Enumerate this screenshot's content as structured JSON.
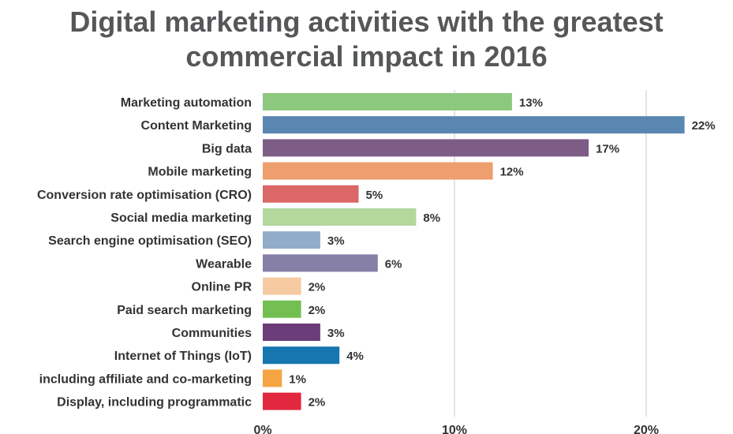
{
  "chart_data": {
    "type": "bar",
    "orientation": "horizontal",
    "title": "Digital marketing activities with the greatest commercial impact in 2016",
    "title_lines": [
      "Digital marketing activities with the greatest",
      "commercial impact in 2016"
    ],
    "categories": [
      "Marketing automation",
      "Content Marketing",
      "Big data",
      "Mobile marketing",
      "Conversion rate optimisation (CRO)",
      "Social media marketing",
      "Search engine optimisation (SEO)",
      "Wearable",
      "Online PR",
      "Paid search marketing",
      "Communities",
      "Internet of Things (IoT)",
      "including affiliate and co-marketing",
      "Display, including programmatic"
    ],
    "values": [
      13,
      22,
      17,
      12,
      5,
      8,
      3,
      6,
      2,
      2,
      3,
      4,
      1,
      2
    ],
    "value_labels": [
      "13%",
      "22%",
      "17%",
      "12%",
      "5%",
      "8%",
      "3%",
      "6%",
      "2%",
      "2%",
      "3%",
      "4%",
      "1%",
      "2%"
    ],
    "colors": [
      "#8cc87e",
      "#5a87b2",
      "#7d5d86",
      "#ee9f6d",
      "#db6767",
      "#b2d89c",
      "#91acc8",
      "#867fa6",
      "#f6caa0",
      "#74bf52",
      "#6b3d78",
      "#1676b0",
      "#f4a443",
      "#e1283f"
    ],
    "xticks": [
      0,
      10,
      20
    ],
    "xtick_labels": [
      "0%",
      "10%",
      "20%"
    ],
    "xlim": [
      0,
      24
    ],
    "xlabel": "",
    "ylabel": "",
    "grid": "vertical",
    "legend": "none"
  }
}
